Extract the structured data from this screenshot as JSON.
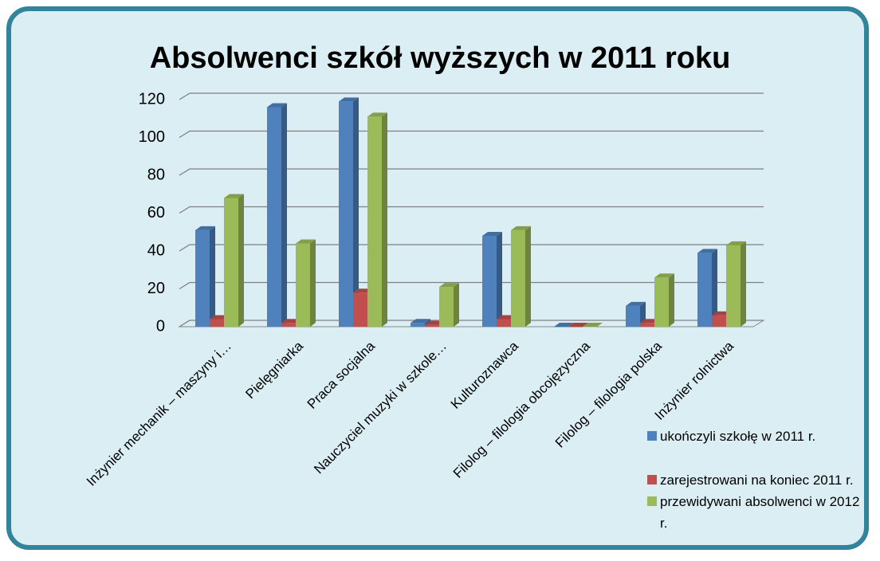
{
  "chart_data": {
    "type": "bar3d",
    "title": "Absolwenci szkół wyższych w 2011 roku",
    "categories": [
      "Inżynier mechanik – maszyny i…",
      "Pielęgniarka",
      "Praca socjalna",
      "Nauczyciel muzyki w szkole…",
      "Kulturoznawca",
      "Filolog – filologia obcojęzyczna",
      "Filolog – filologia polska",
      "Inżynier rolnictwa"
    ],
    "series": [
      {
        "name": "ukończyli szkołę w 2011 r.",
        "color": "#4f81bd",
        "values": [
          51,
          116,
          119,
          2,
          48,
          0,
          11,
          39
        ]
      },
      {
        "name": "zarejestrowani na koniec 2011 r.",
        "color": "#c0504d",
        "values": [
          4,
          2,
          18,
          1,
          4,
          0,
          2,
          6
        ]
      },
      {
        "name": "przewidywani absolwenci w 2012 r.",
        "color": "#9bbb59",
        "values": [
          68,
          44,
          111,
          21,
          51,
          0,
          26,
          43
        ]
      }
    ],
    "ylim": [
      0,
      120
    ],
    "yticks": [
      0,
      20,
      40,
      60,
      80,
      100,
      120
    ],
    "grid": true,
    "legend": "bottom-right"
  }
}
